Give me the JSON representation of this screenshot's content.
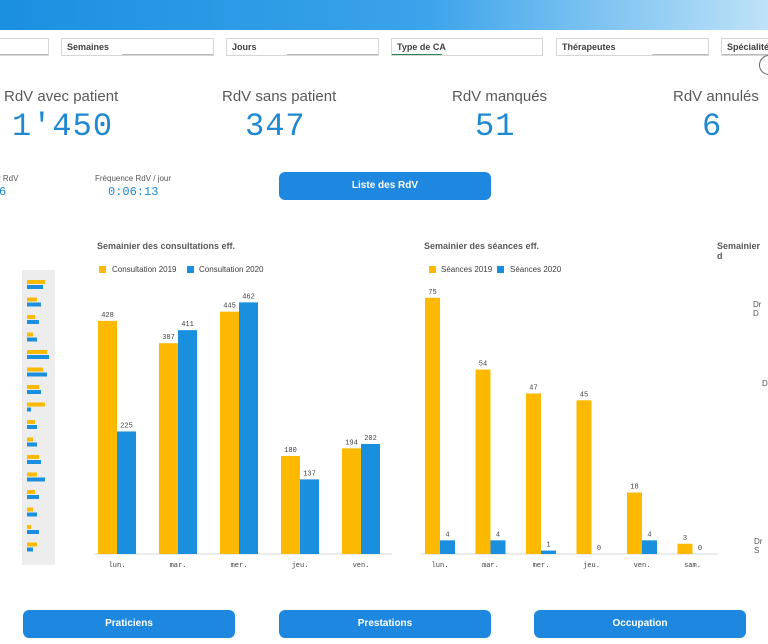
{
  "colors": {
    "series_2019": "#fcb900",
    "series_2020": "#1a8fdd",
    "accent": "#1e88e0"
  },
  "filters": [
    {
      "label": ""
    },
    {
      "label": "Semaines"
    },
    {
      "label": "Jours"
    },
    {
      "label": "Type de CA"
    },
    {
      "label": "Thérapeutes"
    },
    {
      "label": "Spécialités"
    }
  ],
  "kpis": [
    {
      "label": "RdV avec patient",
      "value": "1'450"
    },
    {
      "label": "RdV sans patient",
      "value": "347"
    },
    {
      "label": "RdV manqués",
      "value": "51"
    },
    {
      "label": "RdV annulés",
      "value": "6"
    }
  ],
  "small_stats": {
    "left_label": "r RdV",
    "left_value": "6",
    "freq_label": "Fréquence RdV / jour",
    "freq_value": "0:06:13"
  },
  "buttons": {
    "liste": "Liste des RdV",
    "praticiens": "Praticiens",
    "prestations": "Prestations",
    "occupation": "Occupation"
  },
  "chart_data": [
    {
      "type": "bar",
      "title": "Semainier des consultations eff.",
      "categories": [
        "lun.",
        "mar.",
        "mer.",
        "jeu.",
        "ven."
      ],
      "series": [
        {
          "name": "Consultation 2019",
          "values": [
            428,
            387,
            445,
            180,
            194
          ]
        },
        {
          "name": "Consultation 2020",
          "values": [
            225,
            411,
            462,
            137,
            202
          ]
        }
      ],
      "ylim": [
        0,
        470
      ]
    },
    {
      "type": "bar",
      "title": "Semainier des séances eff.",
      "categories": [
        "lun.",
        "mar.",
        "mer.",
        "jeu.",
        "ven.",
        "sam."
      ],
      "series": [
        {
          "name": "Séances 2019",
          "values": [
            75,
            54,
            47,
            45,
            18,
            3
          ]
        },
        {
          "name": "Séances 2020",
          "values": [
            4,
            4,
            1,
            0,
            4,
            0
          ]
        }
      ],
      "ylim": [
        0,
        77
      ]
    }
  ],
  "right_chart": {
    "title": "Semainier d",
    "labels": [
      "Dr D",
      "D",
      "Dr S"
    ]
  }
}
